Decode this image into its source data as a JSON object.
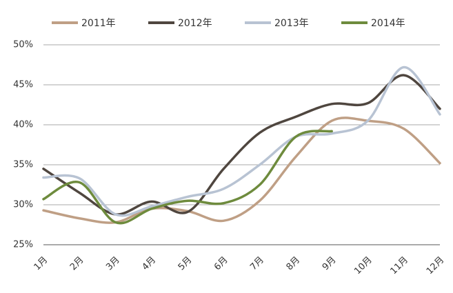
{
  "chart_data": {
    "type": "line",
    "categories": [
      "1月",
      "2月",
      "3月",
      "4月",
      "5月",
      "6月",
      "7月",
      "8月",
      "9月",
      "10月",
      "11月",
      "12月"
    ],
    "series": [
      {
        "name": "2011年",
        "color": "#bf9f85",
        "values": [
          29.3,
          28.3,
          27.8,
          29.5,
          29.2,
          28.0,
          30.5,
          36.0,
          40.5,
          40.5,
          39.5,
          35.2
        ]
      },
      {
        "name": "2012年",
        "color": "#4f463f",
        "values": [
          34.5,
          31.5,
          28.8,
          30.4,
          29.1,
          34.5,
          39.0,
          41.0,
          42.6,
          42.7,
          46.2,
          42.0
        ]
      },
      {
        "name": "2013年",
        "color": "#b8c3d3",
        "values": [
          33.4,
          33.3,
          28.8,
          29.8,
          31.0,
          32.0,
          35.0,
          38.5,
          38.9,
          40.5,
          47.2,
          41.3
        ]
      },
      {
        "name": "2014年",
        "color": "#6e8b3d",
        "values": [
          30.7,
          32.8,
          27.8,
          29.5,
          30.5,
          30.2,
          32.5,
          38.5,
          39.2,
          null,
          null,
          null
        ]
      }
    ],
    "ylim": [
      25,
      50
    ],
    "yticks": [
      {
        "value": 25,
        "label": "25%"
      },
      {
        "value": 30,
        "label": "30%"
      },
      {
        "value": 35,
        "label": "35%"
      },
      {
        "value": 40,
        "label": "40%"
      },
      {
        "value": 45,
        "label": "45%"
      },
      {
        "value": 50,
        "label": "50%"
      }
    ],
    "grid": true
  }
}
